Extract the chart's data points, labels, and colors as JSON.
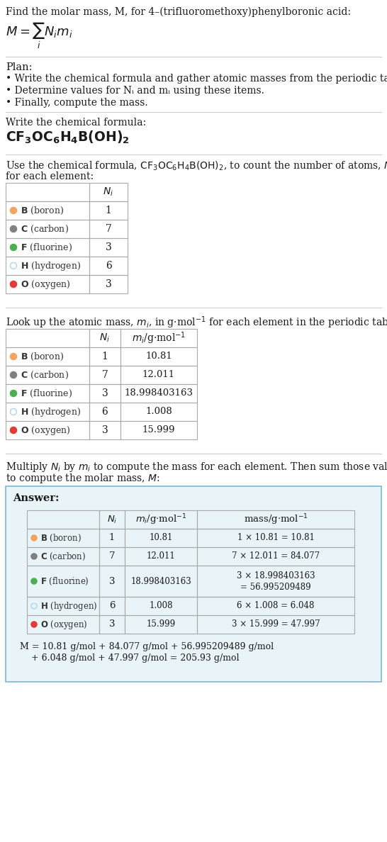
{
  "bg_color": "#ffffff",
  "title_line": "Find the molar mass, M, for 4–(trifluoromethoxy)phenylboronic acid:",
  "plan_header": "Plan:",
  "plan_bullets": [
    "Write the chemical formula and gather atomic masses from the periodic table.",
    "Determine values for Nᵢ and mᵢ using these items.",
    "Finally, compute the mass."
  ],
  "formula_section_header": "Write the chemical formula:",
  "answer_bg": "#e8f4f8",
  "answer_border": "#7ab8d4",
  "elements": [
    {
      "symbol": "B",
      "name": "boron",
      "dot_color": "#f4a460",
      "dot_fill": true,
      "N": 1,
      "m": "10.81",
      "mass_calc_1": "1 × 10.81 = 10.81",
      "mass_calc_2": ""
    },
    {
      "symbol": "C",
      "name": "carbon",
      "dot_color": "#808080",
      "dot_fill": true,
      "N": 7,
      "m": "12.011",
      "mass_calc_1": "7 × 12.011 = 84.077",
      "mass_calc_2": ""
    },
    {
      "symbol": "F",
      "name": "fluorine",
      "dot_color": "#4caf50",
      "dot_fill": true,
      "N": 3,
      "m": "18.998403163",
      "mass_calc_1": "3 × 18.998403163",
      "mass_calc_2": "= 56.995209489"
    },
    {
      "symbol": "H",
      "name": "hydrogen",
      "dot_color": "#b0d8f0",
      "dot_fill": false,
      "N": 6,
      "m": "1.008",
      "mass_calc_1": "6 × 1.008 = 6.048",
      "mass_calc_2": ""
    },
    {
      "symbol": "O",
      "name": "oxygen",
      "dot_color": "#e53935",
      "dot_fill": true,
      "N": 3,
      "m": "15.999",
      "mass_calc_1": "3 × 15.999 = 47.997",
      "mass_calc_2": ""
    }
  ],
  "final_eq_1": "M = 10.81 g/mol + 84.077 g/mol + 56.995209489 g/mol",
  "final_eq_2": "    + 6.048 g/mol + 47.997 g/mol = 205.93 g/mol"
}
